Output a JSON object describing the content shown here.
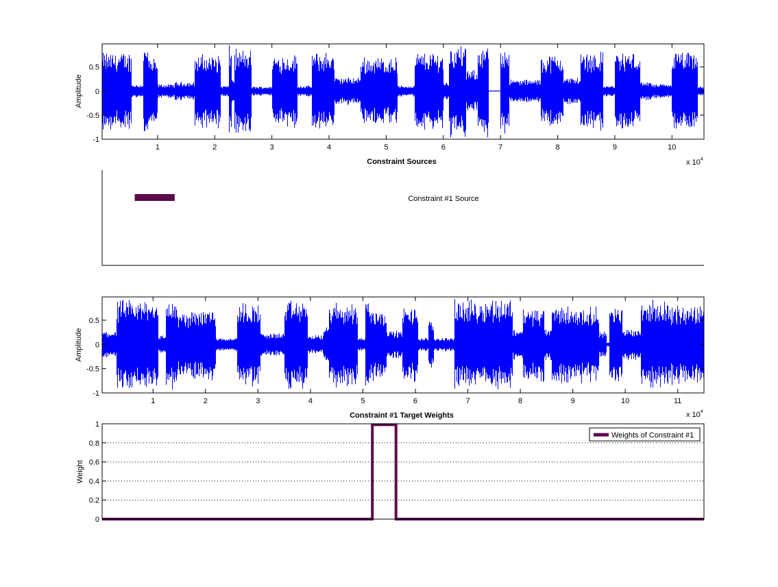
{
  "colors": {
    "waveform": "#0000ff",
    "constraint": "#5c0b4c",
    "axes": "#000000",
    "background": "#ffffff"
  },
  "chart_data": [
    {
      "type": "line",
      "id": "source_waveform",
      "title": "",
      "xlabel": "",
      "ylabel": "Amplitude",
      "x_exponent_label": "x 10",
      "x_exponent": "4",
      "xlim": [
        300,
        105600
      ],
      "ylim": [
        -1,
        0.98
      ],
      "xticks": [
        10000,
        20000,
        30000,
        40000,
        50000,
        60000,
        70000,
        80000,
        90000,
        100000
      ],
      "xtick_labels": [
        "1",
        "2",
        "3",
        "4",
        "5",
        "6",
        "7",
        "8",
        "9",
        "10"
      ],
      "yticks": [
        -1,
        -0.5,
        0,
        0.5
      ],
      "ytick_labels": [
        "-1",
        "-0.5",
        "0",
        "0.5"
      ],
      "grid": false,
      "envelope_segments_start_end_amplitude": [
        [
          300,
          5500,
          0.85
        ],
        [
          5500,
          7500,
          0.15
        ],
        [
          7500,
          8500,
          1.0
        ],
        [
          8500,
          10000,
          0.7
        ],
        [
          10000,
          13000,
          0.15
        ],
        [
          13000,
          16500,
          0.2
        ],
        [
          16500,
          21000,
          0.8
        ],
        [
          21000,
          22500,
          0.12
        ],
        [
          22500,
          23000,
          1.0
        ],
        [
          23000,
          23500,
          0.3
        ],
        [
          23500,
          26500,
          0.9
        ],
        [
          26500,
          30000,
          0.1
        ],
        [
          30000,
          34500,
          0.8
        ],
        [
          34500,
          37000,
          0.12
        ],
        [
          37000,
          41000,
          0.85
        ],
        [
          41000,
          45500,
          0.3
        ],
        [
          45500,
          52000,
          0.75
        ],
        [
          52000,
          55000,
          0.12
        ],
        [
          55000,
          60000,
          0.85
        ],
        [
          60000,
          61000,
          0.2
        ],
        [
          61000,
          64000,
          1.0
        ],
        [
          64000,
          66000,
          0.45
        ],
        [
          66000,
          68000,
          1.0
        ],
        [
          68000,
          70000,
          0.0
        ],
        [
          70000,
          71500,
          1.0
        ],
        [
          71500,
          77000,
          0.25
        ],
        [
          77000,
          81000,
          0.8
        ],
        [
          81000,
          84000,
          0.3
        ],
        [
          84000,
          88000,
          0.85
        ],
        [
          88000,
          90000,
          0.12
        ],
        [
          90000,
          94500,
          0.85
        ],
        [
          94500,
          96500,
          0.2
        ],
        [
          96500,
          100000,
          0.15
        ],
        [
          100000,
          104500,
          0.85
        ],
        [
          104500,
          105600,
          0.1
        ]
      ]
    },
    {
      "type": "line",
      "id": "constraint_sources",
      "title": "Constraint Sources",
      "xlim": [
        300,
        105600
      ],
      "segment_x": [
        6000,
        13000
      ],
      "label": "Constraint #1 Source"
    },
    {
      "type": "line",
      "id": "target_waveform",
      "title": "",
      "xlabel": "",
      "ylabel": "Amplitude",
      "x_exponent_label": "x 10",
      "x_exponent": "4",
      "xlim": [
        300,
        115000
      ],
      "ylim": [
        -1,
        0.98
      ],
      "xticks": [
        10000,
        20000,
        30000,
        40000,
        50000,
        60000,
        70000,
        80000,
        90000,
        100000,
        110000
      ],
      "xtick_labels": [
        "1",
        "2",
        "3",
        "4",
        "5",
        "6",
        "7",
        "8",
        "9",
        "10",
        "11"
      ],
      "yticks": [
        -1,
        -0.5,
        0,
        0.5
      ],
      "ytick_labels": [
        "-1",
        "-0.5",
        "0",
        "0.5"
      ],
      "grid": false,
      "envelope_segments_start_end_amplitude": [
        [
          300,
          3000,
          0.3
        ],
        [
          3000,
          8000,
          0.95
        ],
        [
          8000,
          11000,
          1.0
        ],
        [
          11000,
          12500,
          0.2
        ],
        [
          12500,
          13500,
          1.0
        ],
        [
          13500,
          14500,
          0.95
        ],
        [
          14500,
          17500,
          0.7
        ],
        [
          17500,
          22000,
          0.8
        ],
        [
          22000,
          26000,
          0.15
        ],
        [
          26000,
          30500,
          0.9
        ],
        [
          30500,
          35000,
          0.25
        ],
        [
          35000,
          39500,
          0.95
        ],
        [
          39500,
          42500,
          0.2
        ],
        [
          42500,
          43500,
          0.4
        ],
        [
          43500,
          49000,
          0.9
        ],
        [
          49000,
          50500,
          0.15
        ],
        [
          50500,
          51500,
          1.0
        ],
        [
          51500,
          54500,
          0.8
        ],
        [
          54500,
          57500,
          0.3
        ],
        [
          57500,
          60500,
          0.8
        ],
        [
          60500,
          62500,
          0.15
        ],
        [
          62500,
          63500,
          0.5
        ],
        [
          63500,
          67500,
          0.15
        ],
        [
          67500,
          73500,
          0.95
        ],
        [
          73500,
          78500,
          1.0
        ],
        [
          78500,
          80500,
          0.35
        ],
        [
          80500,
          84500,
          0.8
        ],
        [
          84500,
          86000,
          0.35
        ],
        [
          86000,
          89500,
          0.85
        ],
        [
          89500,
          95000,
          0.8
        ],
        [
          95000,
          96500,
          0.3
        ],
        [
          96500,
          97000,
          0.05
        ],
        [
          97000,
          99500,
          0.8
        ],
        [
          99500,
          103000,
          0.35
        ],
        [
          103000,
          108500,
          0.95
        ],
        [
          108500,
          115000,
          0.85
        ]
      ]
    },
    {
      "type": "line",
      "id": "target_weights",
      "title": "Constraint #1 Target Weights",
      "ylabel": "Weight",
      "xlim": [
        300,
        115000
      ],
      "ylim": [
        0,
        1
      ],
      "yticks": [
        0,
        0.2,
        0.4,
        0.6,
        0.8,
        1
      ],
      "ytick_labels": [
        "0",
        "0.2",
        "0.4",
        "0.6",
        "0.8",
        "1"
      ],
      "grid": true,
      "legend": {
        "label": "Weights of Constraint #1",
        "placement": "top-right"
      },
      "series": [
        {
          "name": "Weights of Constraint #1",
          "x": [
            300,
            51800,
            51800,
            56300,
            56300,
            115000
          ],
          "y": [
            0,
            0,
            0.99,
            0.99,
            0,
            0
          ]
        }
      ]
    }
  ]
}
